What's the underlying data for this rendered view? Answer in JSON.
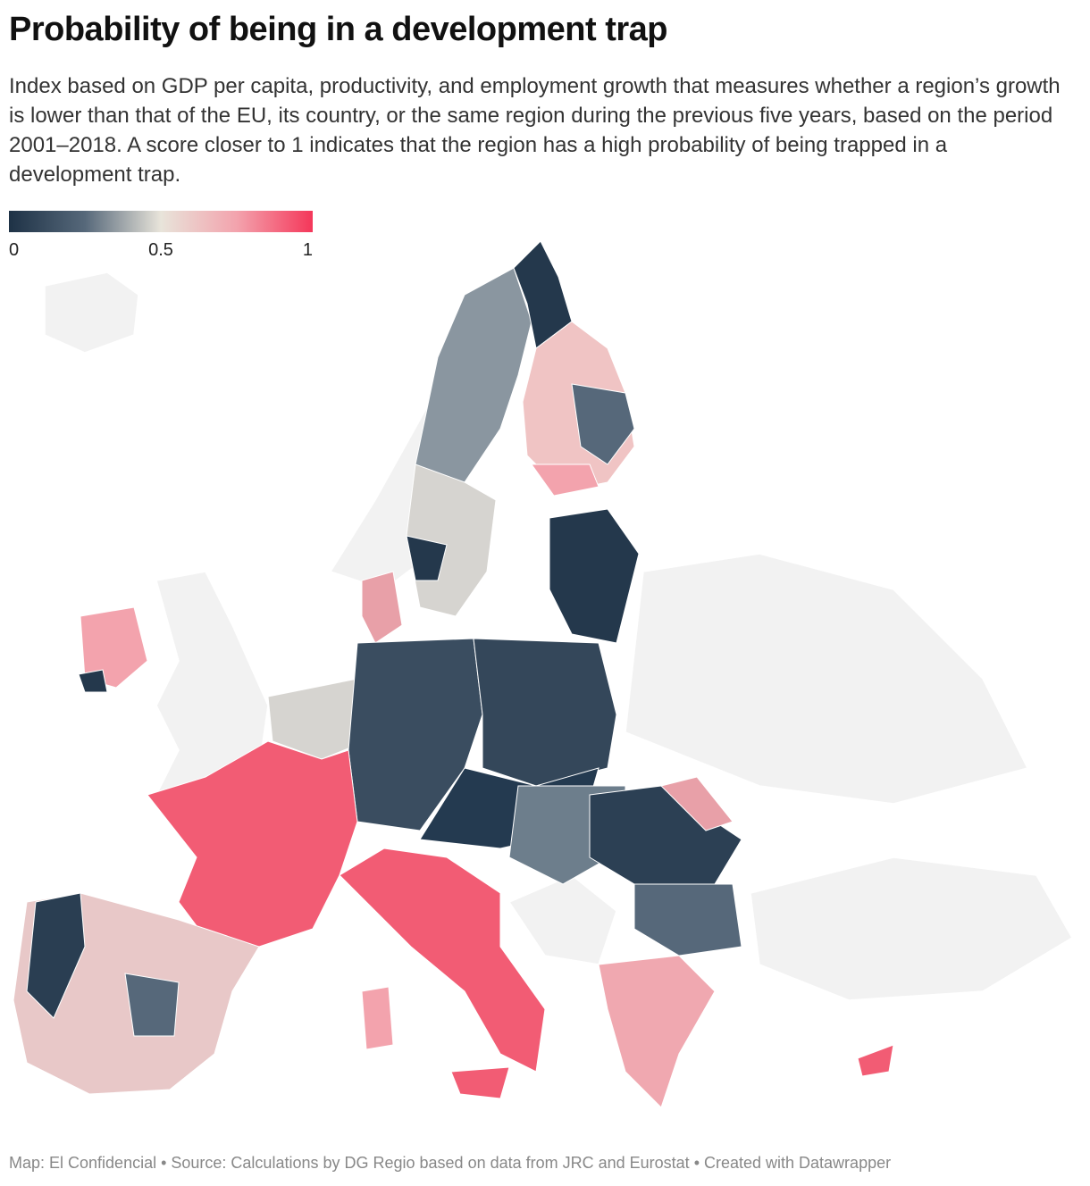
{
  "header": {
    "title": "Probability of being in a development trap",
    "subtitle": "Index based on GDP per capita, productivity, and employment growth that measures whether a region’s growth is lower than that of the EU, its country, or the same region during the previous five years, based on the period 2001–2018. A score closer to 1 indicates that the region has a high probability of being trapped in a development trap."
  },
  "legend": {
    "ticks": [
      0,
      0.5,
      1
    ],
    "colors": [
      "#1e3246",
      "#56687a",
      "#e8e4da",
      "#f3a3ad",
      "#f4375a"
    ]
  },
  "footer": "Map: El Confidencial • Source: Calculations by DG Regio based on data from JRC and Eurostat • Created with Datawrapper"
}
